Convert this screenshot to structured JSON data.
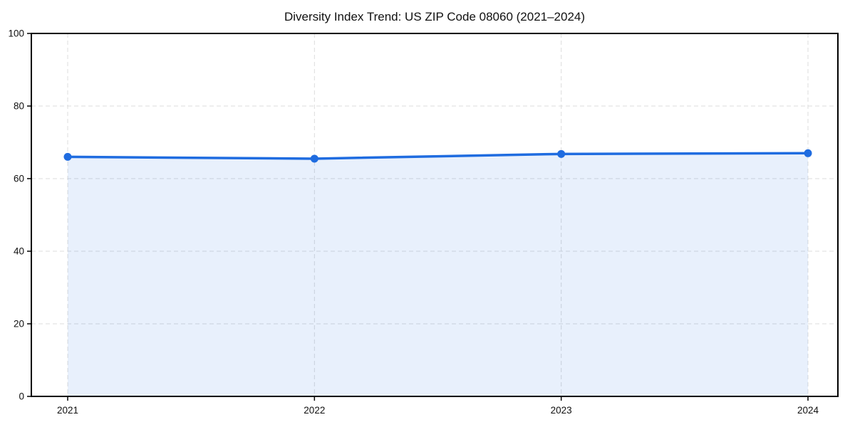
{
  "chart_data": {
    "type": "area",
    "title": "Diversity Index Trend: US ZIP Code 08060 (2021–2024)",
    "categories": [
      "2021",
      "2022",
      "2023",
      "2024"
    ],
    "series": [
      {
        "name": "Diversity Index",
        "values": [
          66.0,
          65.5,
          66.8,
          67.0
        ]
      }
    ],
    "xlabel": "",
    "ylabel": "",
    "ylim": [
      0,
      100
    ],
    "yticks": [
      0,
      20,
      40,
      60,
      80,
      100
    ],
    "grid": true,
    "grid_style": "dashed",
    "legend": false,
    "marker": "circle",
    "colors": {
      "line": "#1f6ce0",
      "marker": "#1f6ce0",
      "fill": "#1f6ce0",
      "fill_opacity": "0.1",
      "grid": "#dcdcdc",
      "spine": "#000000",
      "background": "#ffffff",
      "text": "#111111"
    }
  }
}
